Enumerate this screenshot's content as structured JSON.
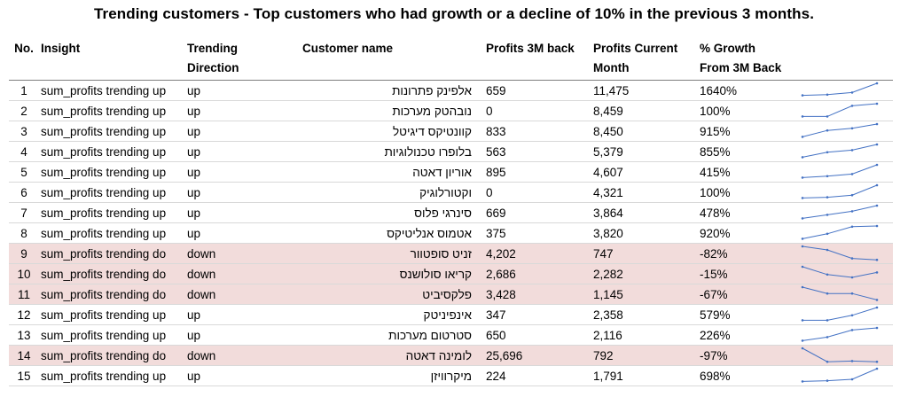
{
  "title": "Trending customers - Top customers who had growth or a decline of 10%  in the previous 3 months.",
  "headers": {
    "no": "No.",
    "insight": "Insight",
    "direction_1": "Trending",
    "direction_2": "Direction",
    "customer": "Customer name",
    "profits_3m": "Profits 3M back",
    "profits_current_1": "Profits Current",
    "profits_current_2": "Month",
    "growth_1": "% Growth",
    "growth_2": "From 3M Back"
  },
  "colors": {
    "down_row_bg": "#f2dcdb",
    "sparkline": "#4472c4"
  },
  "rows": [
    {
      "no": "1",
      "insight": "sum_profits trending up",
      "direction": "up",
      "customer": "אלפינק פתרונות",
      "p3m": "659",
      "pcur": "11,475",
      "growth": "1640%",
      "trend": [
        0.15,
        0.2,
        0.35,
        1.0
      ]
    },
    {
      "no": "2",
      "insight": "sum_profits trending up",
      "direction": "up",
      "customer": "נובהטק מערכות",
      "p3m": "0",
      "pcur": "8,459",
      "growth": "100%",
      "trend": [
        0.1,
        0.1,
        0.85,
        1.0
      ]
    },
    {
      "no": "3",
      "insight": "sum_profits trending up",
      "direction": "up",
      "customer": "קוונטיקס דיגיטל",
      "p3m": "833",
      "pcur": "8,450",
      "growth": "915%",
      "trend": [
        0.1,
        0.55,
        0.7,
        1.0
      ]
    },
    {
      "no": "4",
      "insight": "sum_profits trending up",
      "direction": "up",
      "customer": "בלופרו טכנולוגיות",
      "p3m": "563",
      "pcur": "5,379",
      "growth": "855%",
      "trend": [
        0.1,
        0.45,
        0.6,
        1.0
      ]
    },
    {
      "no": "5",
      "insight": "sum_profits trending up",
      "direction": "up",
      "customer": "אוריון דאטה",
      "p3m": "895",
      "pcur": "4,607",
      "growth": "415%",
      "trend": [
        0.1,
        0.2,
        0.35,
        1.0
      ]
    },
    {
      "no": "6",
      "insight": "sum_profits trending up",
      "direction": "up",
      "customer": "וקטורלוגיק",
      "p3m": "0",
      "pcur": "4,321",
      "growth": "100%",
      "trend": [
        0.1,
        0.15,
        0.3,
        1.0
      ]
    },
    {
      "no": "7",
      "insight": "sum_profits trending up",
      "direction": "up",
      "customer": "סינרגי פלוס",
      "p3m": "669",
      "pcur": "3,864",
      "growth": "478%",
      "trend": [
        0.1,
        0.35,
        0.6,
        1.0
      ]
    },
    {
      "no": "8",
      "insight": "sum_profits trending up",
      "direction": "up",
      "customer": "אטמוס אנליטיקס",
      "p3m": "375",
      "pcur": "3,820",
      "growth": "920%",
      "trend": [
        0.1,
        0.45,
        0.95,
        1.0
      ]
    },
    {
      "no": "9",
      "insight": "sum_profits trending do",
      "direction": "down",
      "customer": "זניט סופטוור",
      "p3m": "4,202",
      "pcur": "747",
      "growth": "-82%",
      "trend": [
        1.0,
        0.75,
        0.15,
        0.05
      ]
    },
    {
      "no": "10",
      "insight": "sum_profits trending do",
      "direction": "down",
      "customer": "קריאו סולושנס",
      "p3m": "2,686",
      "pcur": "2,282",
      "growth": "-15%",
      "trend": [
        1.0,
        0.45,
        0.25,
        0.6
      ]
    },
    {
      "no": "11",
      "insight": "sum_profits trending do",
      "direction": "down",
      "customer": "פלקסיביט",
      "p3m": "3,428",
      "pcur": "1,145",
      "growth": "-67%",
      "trend": [
        1.0,
        0.55,
        0.55,
        0.1
      ]
    },
    {
      "no": "12",
      "insight": "sum_profits trending up",
      "direction": "up",
      "customer": "אינפיניטק",
      "p3m": "347",
      "pcur": "2,358",
      "growth": "579%",
      "trend": [
        0.1,
        0.1,
        0.45,
        1.0
      ]
    },
    {
      "no": "13",
      "insight": "sum_profits trending up",
      "direction": "up",
      "customer": "סטרטום מערכות",
      "p3m": "650",
      "pcur": "2,116",
      "growth": "226%",
      "trend": [
        0.1,
        0.35,
        0.85,
        1.0
      ]
    },
    {
      "no": "14",
      "insight": "sum_profits trending do",
      "direction": "down",
      "customer": "לומינה דאטה",
      "p3m": "25,696",
      "pcur": "792",
      "growth": "-97%",
      "trend": [
        1.0,
        0.05,
        0.1,
        0.05
      ]
    },
    {
      "no": "15",
      "insight": "sum_profits trending up",
      "direction": "up",
      "customer": "מיקרוויזן",
      "p3m": "224",
      "pcur": "1,791",
      "growth": "698%",
      "trend": [
        0.1,
        0.15,
        0.25,
        1.0
      ]
    }
  ]
}
